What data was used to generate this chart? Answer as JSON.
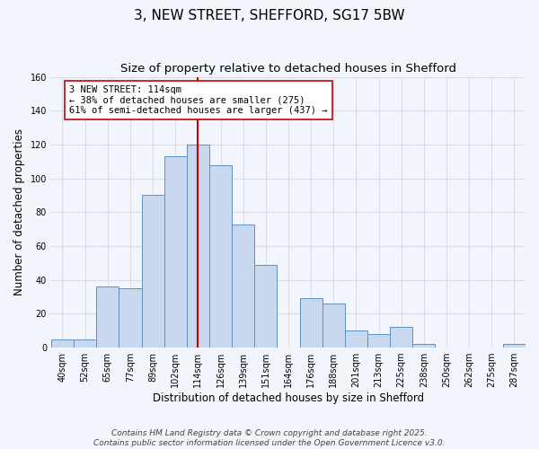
{
  "title": "3, NEW STREET, SHEFFORD, SG17 5BW",
  "subtitle": "Size of property relative to detached houses in Shefford",
  "xlabel": "Distribution of detached houses by size in Shefford",
  "ylabel": "Number of detached properties",
  "bins": [
    "40sqm",
    "52sqm",
    "65sqm",
    "77sqm",
    "89sqm",
    "102sqm",
    "114sqm",
    "126sqm",
    "139sqm",
    "151sqm",
    "164sqm",
    "176sqm",
    "188sqm",
    "201sqm",
    "213sqm",
    "225sqm",
    "238sqm",
    "250sqm",
    "262sqm",
    "275sqm",
    "287sqm"
  ],
  "values": [
    5,
    5,
    36,
    35,
    90,
    113,
    120,
    108,
    73,
    49,
    0,
    29,
    26,
    10,
    8,
    12,
    2,
    0,
    0,
    0,
    2
  ],
  "bar_color": "#c8d8ee",
  "bar_edge_color": "#6090c0",
  "vline_x_index": 6,
  "vline_color": "#cc0000",
  "annotation_line1": "3 NEW STREET: 114sqm",
  "annotation_line2": "← 38% of detached houses are smaller (275)",
  "annotation_line3": "61% of semi-detached houses are larger (437) →",
  "annotation_box_color": "#ffffff",
  "annotation_box_edge_color": "#cc0000",
  "ylim": [
    0,
    160
  ],
  "yticks": [
    0,
    20,
    40,
    60,
    80,
    100,
    120,
    140,
    160
  ],
  "background_color": "#f2f5fb",
  "grid_color": "#d8dde8",
  "footnote1": "Contains HM Land Registry data © Crown copyright and database right 2025.",
  "footnote2": "Contains public sector information licensed under the Open Government Licence v3.0.",
  "title_fontsize": 11,
  "subtitle_fontsize": 9.5,
  "axis_label_fontsize": 8.5,
  "tick_fontsize": 7,
  "annotation_fontsize": 7.5,
  "footnote_fontsize": 6.5
}
